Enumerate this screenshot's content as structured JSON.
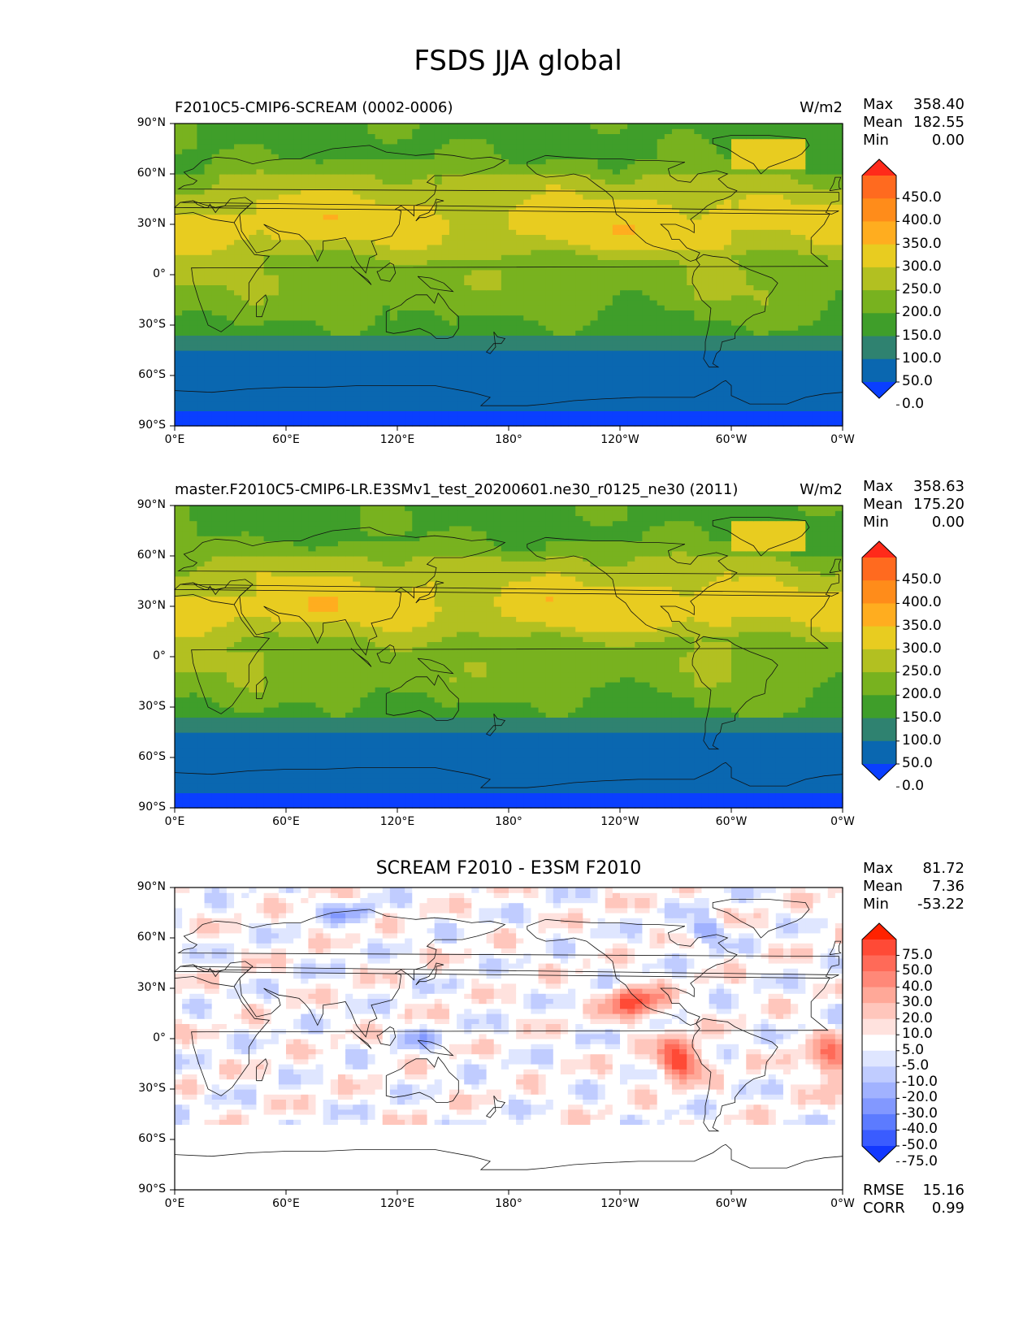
{
  "figure": {
    "title": "FSDS JJA global"
  },
  "panels": [
    {
      "title": "F2010C5-CMIP6-SCREAM (0002-0006)",
      "units": "W/m2",
      "stats": [
        {
          "label": "Max",
          "value": "358.40"
        },
        {
          "label": "Mean",
          "value": "182.55"
        },
        {
          "label": "Min",
          "value": "0.00"
        }
      ],
      "colorbar": {
        "labels": [
          "450.0",
          "400.0",
          "350.0",
          "300.0",
          "250.0",
          "200.0",
          "150.0",
          "100.0",
          "50.0",
          "0.0"
        ],
        "colors": [
          "#ff2a1a",
          "#ff6a1f",
          "#ff8c1a",
          "#ffad1f",
          "#e8cc20",
          "#b2c021",
          "#78b21f",
          "#3f9e2a",
          "#2f8270",
          "#0a67b0",
          "#0a3fff"
        ]
      }
    },
    {
      "title": "master.F2010C5-CMIP6-LR.E3SMv1_test_20200601.ne30_r0125_ne30 (2011)",
      "units": "W/m2",
      "stats": [
        {
          "label": "Max",
          "value": "358.63"
        },
        {
          "label": "Mean",
          "value": "175.20"
        },
        {
          "label": "Min",
          "value": "0.00"
        }
      ],
      "colorbar": {
        "labels": [
          "450.0",
          "400.0",
          "350.0",
          "300.0",
          "250.0",
          "200.0",
          "150.0",
          "100.0",
          "50.0",
          "0.0"
        ],
        "colors": [
          "#ff2a1a",
          "#ff6a1f",
          "#ff8c1a",
          "#ffad1f",
          "#e8cc20",
          "#b2c021",
          "#78b21f",
          "#3f9e2a",
          "#2f8270",
          "#0a67b0",
          "#0a3fff"
        ]
      }
    },
    {
      "title": "SCREAM F2010 - E3SM F2010",
      "stats": [
        {
          "label": "Max",
          "value": "81.72"
        },
        {
          "label": "Mean",
          "value": "7.36"
        },
        {
          "label": "Min",
          "value": "-53.22"
        }
      ],
      "extra_stats": [
        {
          "label": "RMSE",
          "value": "15.16"
        },
        {
          "label": "CORR",
          "value": "0.99"
        }
      ],
      "colorbar": {
        "labels": [
          "75.0",
          "50.0",
          "40.0",
          "30.0",
          "20.0",
          "10.0",
          "5.0",
          "-5.0",
          "-10.0",
          "-20.0",
          "-30.0",
          "-40.0",
          "-50.0",
          "-75.0"
        ],
        "colors": [
          "#ff2200",
          "#ff4a36",
          "#ff6a58",
          "#ff8878",
          "#ffa898",
          "#ffc6bc",
          "#ffe2de",
          "#ffffff",
          "#dfe6ff",
          "#c0ccff",
          "#a1b2ff",
          "#8298ff",
          "#5c7bff",
          "#3a5cff",
          "#1238ff"
        ]
      }
    }
  ],
  "axes": {
    "lat_ticks": [
      "90°N",
      "60°N",
      "30°N",
      "0°",
      "30°S",
      "60°S",
      "90°S"
    ],
    "lon_ticks": [
      "0°E",
      "60°E",
      "120°E",
      "180°",
      "120°W",
      "60°W",
      "0°W"
    ]
  }
}
